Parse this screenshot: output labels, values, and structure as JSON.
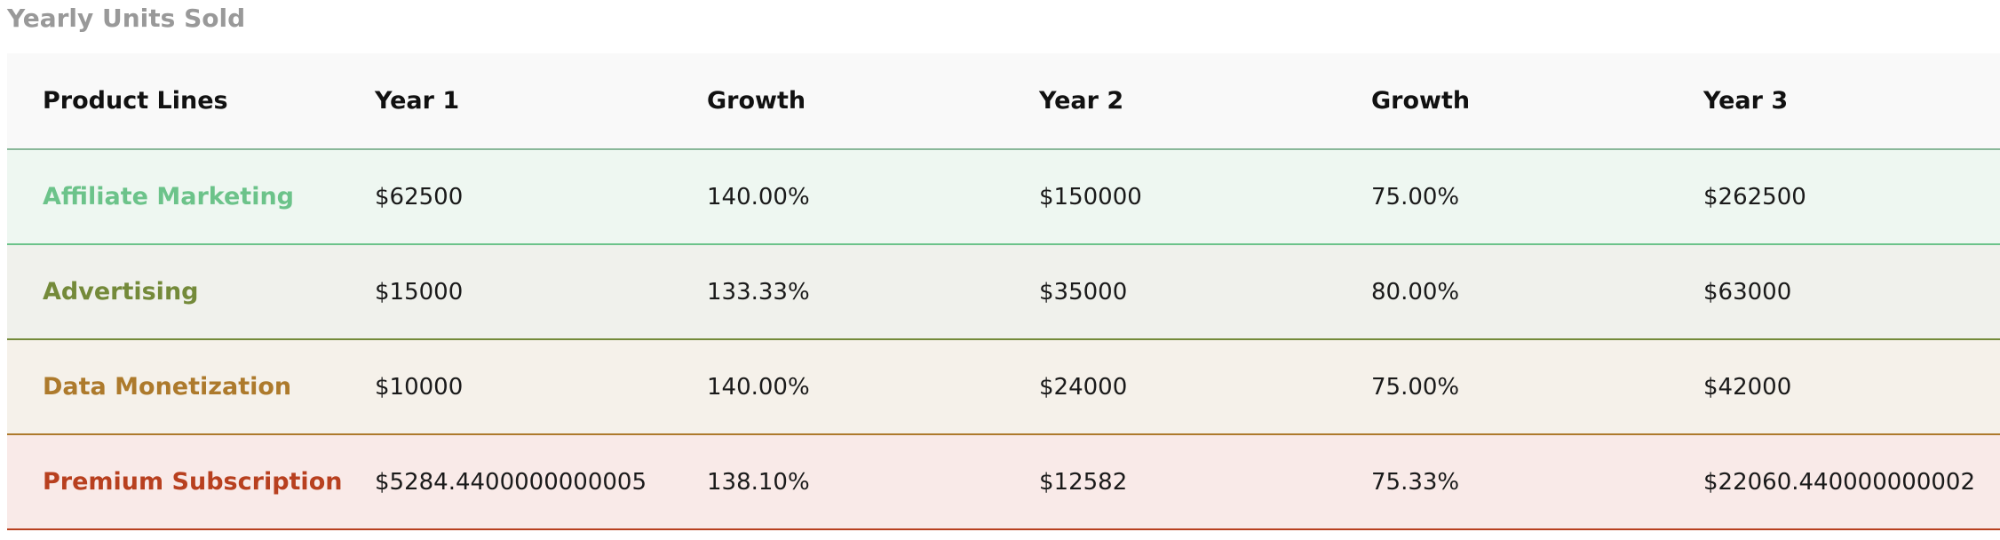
{
  "title": "Yearly Units Sold",
  "table": {
    "headers": [
      "Product Lines",
      "Year 1",
      "Growth",
      "Year 2",
      "Growth",
      "Year 3"
    ],
    "rows": [
      {
        "cells": [
          "Affiliate Marketing",
          "$62500",
          "140.00%",
          "$150000",
          "75.00%",
          "$262500"
        ],
        "accent": "#6cc38a",
        "background": "#eef7f1"
      },
      {
        "cells": [
          "Advertising",
          "$15000",
          "133.33%",
          "$35000",
          "80.00%",
          "$63000"
        ],
        "accent": "#748a3a",
        "background": "#f0f1ec"
      },
      {
        "cells": [
          "Data Monetization",
          "$10000",
          "140.00%",
          "$24000",
          "75.00%",
          "$42000"
        ],
        "accent": "#ad7a2c",
        "background": "#f5f1ea"
      },
      {
        "cells": [
          "Premium Subscription",
          "$5284.4400000000005",
          "138.10%",
          "$12582",
          "75.33%",
          "$22060.440000000002"
        ],
        "accent": "#b8401f",
        "background": "#f9eae8"
      }
    ]
  }
}
